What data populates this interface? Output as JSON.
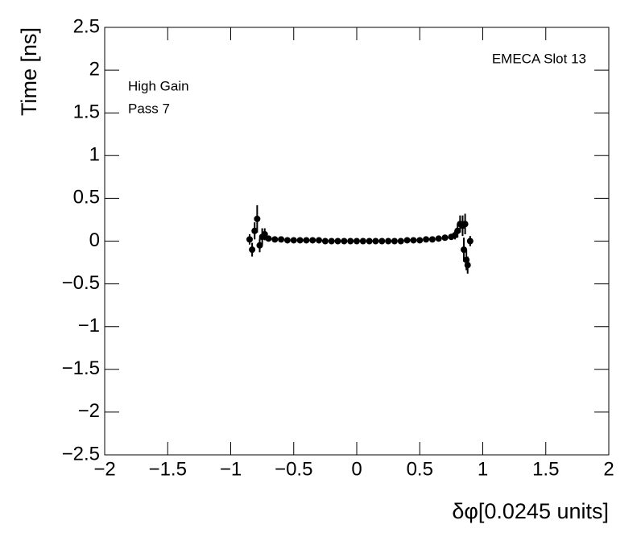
{
  "chart_data": {
    "type": "scatter",
    "title": "EMECA Slot 13",
    "annotations": [
      "High Gain",
      "Pass 7"
    ],
    "x_label": "δφ[0.0245 units]",
    "y_label": "Time [ns]",
    "color": "#000000",
    "xlim": [
      -2,
      2
    ],
    "ylim": [
      -2.5,
      2.5
    ],
    "xticks": [
      {
        "value": -2,
        "label": "−2"
      },
      {
        "value": -1.5,
        "label": "−1.5"
      },
      {
        "value": -1,
        "label": "−1"
      },
      {
        "value": -0.5,
        "label": "−0.5"
      },
      0,
      0.5,
      1,
      1.5,
      2
    ],
    "yticks": [
      {
        "value": -2.5,
        "label": "−2.5"
      },
      {
        "value": -2,
        "label": "−2"
      },
      {
        "value": -1.5,
        "label": "−1.5"
      },
      {
        "value": -1,
        "label": "−1"
      },
      {
        "value": -0.5,
        "label": "−0.5"
      },
      0,
      0.5,
      1,
      1.5,
      2,
      2.5
    ],
    "x": [
      -0.85,
      -0.83,
      -0.81,
      -0.79,
      -0.77,
      -0.75,
      -0.73,
      -0.7,
      -0.65,
      -0.6,
      -0.55,
      -0.5,
      -0.45,
      -0.4,
      -0.35,
      -0.3,
      -0.25,
      -0.2,
      -0.15,
      -0.1,
      -0.05,
      0,
      0.05,
      0.1,
      0.15,
      0.2,
      0.25,
      0.3,
      0.35,
      0.4,
      0.45,
      0.5,
      0.55,
      0.6,
      0.65,
      0.7,
      0.75,
      0.78,
      0.8,
      0.82,
      0.84,
      0.85,
      0.86,
      0.87,
      0.88,
      0.9
    ],
    "values": [
      0.02,
      -0.1,
      0.12,
      0.26,
      -0.05,
      0.05,
      0.08,
      0.03,
      0.02,
      0.02,
      0.01,
      0.01,
      0.01,
      0.01,
      0.01,
      0.01,
      0,
      0,
      0,
      0,
      0,
      0,
      0,
      0,
      0,
      0,
      0,
      0,
      0,
      0.01,
      0.01,
      0.01,
      0.02,
      0.02,
      0.03,
      0.04,
      0.05,
      0.07,
      0.12,
      0.2,
      0.18,
      -0.1,
      0.2,
      -0.22,
      -0.28,
      0
    ],
    "errors": [
      0.06,
      0.08,
      0.1,
      0.16,
      0.08,
      0.1,
      0.07,
      0.03,
      0.02,
      0.02,
      0.02,
      0.02,
      0.02,
      0.02,
      0.02,
      0.02,
      0.02,
      0.02,
      0.02,
      0.02,
      0.02,
      0.02,
      0.02,
      0.02,
      0.02,
      0.02,
      0.02,
      0.02,
      0.02,
      0.02,
      0.02,
      0.02,
      0.02,
      0.02,
      0.02,
      0.02,
      0.03,
      0.05,
      0.08,
      0.1,
      0.12,
      0.14,
      0.12,
      0.12,
      0.1,
      0.06
    ]
  }
}
